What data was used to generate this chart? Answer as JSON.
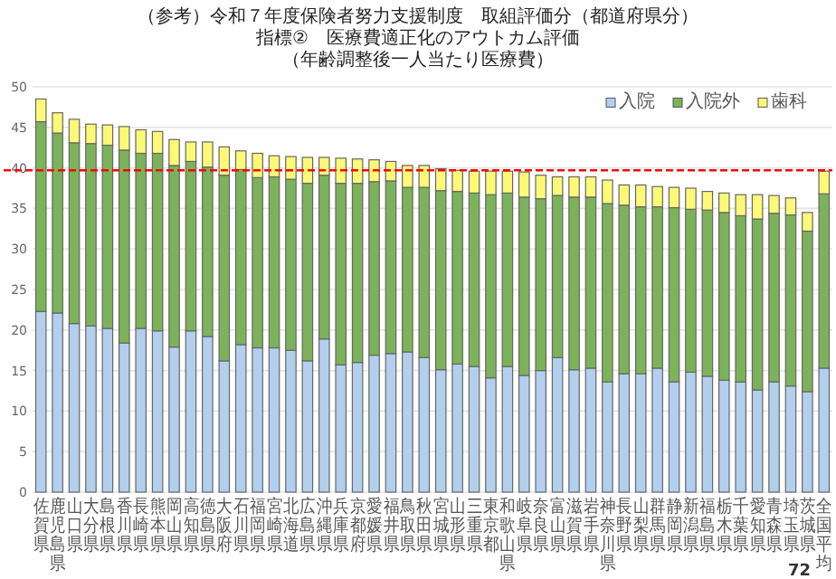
{
  "chart_data": {
    "type": "bar",
    "stacked": true,
    "title": "（参考）令和７年度保険者努力支援制度　取組評価分（都道府県分）",
    "subtitle": "指標②　医療費適正化のアウトカム評価",
    "annotations": [
      "（年齢調整後一人当たり医療費）",
      "72"
    ],
    "categories": [
      "佐賀県",
      "鹿児島県",
      "山口県",
      "大分県",
      "島根県",
      "香川県",
      "長崎県",
      "熊本県",
      "岡山県",
      "高知県",
      "徳島県",
      "大阪府",
      "石川県",
      "福岡県",
      "宮崎県",
      "北海道",
      "広島県",
      "沖縄県",
      "兵庫県",
      "京都府",
      "愛媛県",
      "福井県",
      "鳥取県",
      "秋田県",
      "宮城県",
      "山形県",
      "三重県",
      "東京都",
      "和歌山県",
      "岐阜県",
      "奈良県",
      "富山県",
      "滋賀県",
      "岩手県",
      "神奈川県",
      "長野県",
      "山梨県",
      "群馬県",
      "静岡県",
      "新潟県",
      "福島県",
      "栃木県",
      "千葉県",
      "愛知県",
      "青森県",
      "埼玉県",
      "茨城県",
      "全国平均"
    ],
    "series": [
      {
        "name": "入院",
        "color": "#b4cfee",
        "values": [
          22.3,
          22.1,
          20.8,
          20.5,
          20.2,
          18.4,
          20.2,
          19.9,
          17.9,
          19.9,
          19.2,
          16.2,
          18.2,
          17.8,
          17.8,
          17.5,
          16.2,
          18.9,
          15.7,
          16.0,
          16.9,
          17.1,
          17.3,
          16.6,
          15.1,
          15.8,
          15.5,
          14.1,
          15.5,
          14.4,
          15.0,
          16.6,
          15.1,
          15.3,
          13.6,
          14.6,
          14.6,
          15.3,
          13.6,
          14.8,
          14.3,
          13.8,
          13.6,
          12.6,
          13.6,
          13.1,
          12.4,
          15.3
        ]
      },
      {
        "name": "入院外",
        "color": "#7cb35a",
        "values": [
          23.4,
          22.2,
          22.3,
          22.5,
          22.6,
          23.8,
          21.6,
          21.9,
          22.4,
          20.9,
          20.9,
          22.9,
          21.6,
          21.0,
          21.1,
          21.1,
          21.9,
          20.2,
          22.4,
          22.1,
          21.4,
          21.3,
          20.3,
          21.0,
          22.1,
          21.3,
          21.4,
          22.6,
          21.4,
          22.0,
          21.2,
          20.0,
          21.3,
          21.1,
          22.0,
          20.8,
          20.6,
          19.9,
          21.5,
          20.1,
          20.5,
          20.7,
          20.5,
          21.1,
          20.8,
          21.1,
          19.8,
          21.5
        ]
      },
      {
        "name": "歯科",
        "color": "#fcf977",
        "values": [
          2.8,
          2.5,
          2.9,
          2.4,
          2.5,
          2.9,
          2.9,
          2.7,
          3.2,
          2.4,
          3.1,
          3.5,
          2.3,
          3.0,
          2.6,
          2.8,
          3.2,
          2.2,
          3.1,
          3.0,
          2.7,
          2.4,
          2.7,
          2.7,
          2.7,
          2.6,
          2.7,
          2.9,
          2.7,
          3.1,
          2.9,
          2.3,
          2.5,
          2.5,
          2.9,
          2.5,
          2.7,
          2.5,
          2.5,
          2.6,
          2.3,
          2.4,
          2.6,
          3.0,
          2.2,
          2.1,
          2.3,
          2.8
        ]
      }
    ],
    "ylim": [
      0,
      50
    ],
    "yticks": [
      0,
      5,
      10,
      15,
      20,
      25,
      30,
      35,
      40,
      45,
      50
    ],
    "grid": "y",
    "legend": "top right",
    "ref_lines": [
      {
        "axis": "y",
        "value": 39.7,
        "color": "#ff0000",
        "line_style": "dashed"
      }
    ]
  }
}
